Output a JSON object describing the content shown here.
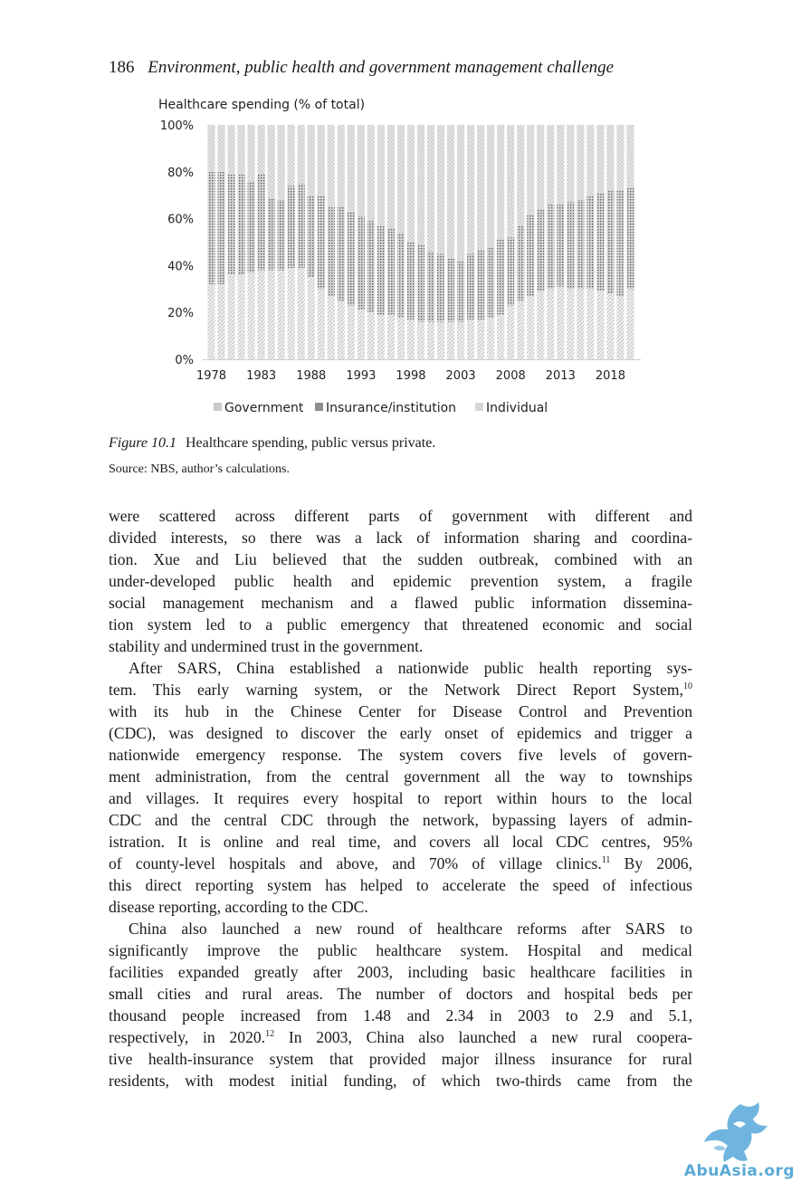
{
  "header": {
    "page_number": "186",
    "running_title": "Environment, public health and government management challenge"
  },
  "chart_data": {
    "type": "bar",
    "stacked": true,
    "title": "Healthcare spending (% of total)",
    "ylim": [
      0,
      100
    ],
    "yticks": [
      "0%",
      "20%",
      "40%",
      "60%",
      "80%",
      "100%"
    ],
    "xtick_labels": [
      "1978",
      "1983",
      "1988",
      "1993",
      "1998",
      "2003",
      "2008",
      "2013",
      "2018"
    ],
    "categories": [
      1978,
      1979,
      1980,
      1981,
      1982,
      1983,
      1984,
      1985,
      1986,
      1987,
      1988,
      1989,
      1990,
      1991,
      1992,
      1993,
      1994,
      1995,
      1996,
      1997,
      1998,
      1999,
      2000,
      2001,
      2002,
      2003,
      2004,
      2005,
      2006,
      2007,
      2008,
      2009,
      2010,
      2011,
      2012,
      2013,
      2014,
      2015,
      2016,
      2017,
      2018,
      2019,
      2020
    ],
    "series": [
      {
        "name": "Government",
        "values": [
          32,
          32,
          36,
          36,
          37,
          38,
          38,
          38,
          39,
          39,
          35,
          30,
          27,
          25,
          23,
          21,
          20,
          19,
          19,
          18,
          17,
          16,
          16,
          16,
          16,
          16,
          17,
          17,
          18,
          19,
          23,
          25,
          27,
          29,
          30,
          31,
          30,
          30,
          30,
          29,
          28,
          27,
          30
        ]
      },
      {
        "name": "Insurance/institution",
        "values": [
          48,
          48,
          43,
          43,
          39,
          41,
          31,
          30,
          35,
          36,
          35,
          40,
          38,
          40,
          40,
          40,
          39,
          38,
          37,
          36,
          33,
          33,
          30,
          29,
          27,
          26,
          28,
          30,
          30,
          32,
          29,
          32,
          35,
          35,
          36,
          35,
          37,
          38,
          40,
          42,
          44,
          45,
          43
        ]
      },
      {
        "name": "Individual",
        "values": [
          20,
          20,
          21,
          21,
          24,
          21,
          31,
          32,
          26,
          25,
          30,
          30,
          35,
          35,
          37,
          39,
          41,
          43,
          44,
          46,
          50,
          51,
          54,
          55,
          57,
          58,
          55,
          53,
          52,
          49,
          48,
          43,
          38,
          36,
          34,
          34,
          33,
          32,
          30,
          29,
          28,
          28,
          27
        ]
      }
    ],
    "legend_position": "bottom",
    "grid": false
  },
  "caption": {
    "label": "Figure 10.1",
    "text": "Healthcare spending, public versus private."
  },
  "source": "Source: NBS, author’s calculations.",
  "paragraphs": [
    {
      "indent": false,
      "lines": [
        "were scattered across different parts of government with different and",
        "divided interests, so there was a lack of information sharing and coordina-",
        "tion. Xue and Liu believed that the sudden outbreak, combined with an",
        "under-developed public health and epidemic prevention system, a fragile",
        "social management mechanism and a flawed public information dissemina-",
        "tion system led to a public emergency that threatened economic and social",
        "stability and undermined trust in the government."
      ]
    },
    {
      "indent": true,
      "lines": [
        "After SARS, China established a nationwide public health reporting sys-",
        "tem. This early warning system, or the Network Direct Report System,",
        "with its hub in the Chinese Center for Disease Control and Prevention",
        "(CDC), was designed to discover the early onset of epidemics and trigger a",
        "nationwide emergency response. The system covers five levels of govern-",
        "ment administration, from the central government all the way to townships",
        "and villages. It requires every hospital to report within hours to the local",
        "CDC and the central CDC through the network, bypassing layers of admin-",
        "istration. It is online and real time, and covers all local CDC centres, 95%",
        "of county-level hospitals and above, and 70% of village clinics.",
        "this direct reporting system has helped to accelerate the speed of infectious",
        "disease reporting, according to the CDC."
      ]
    },
    {
      "indent": true,
      "lines": [
        "China also launched a new round of healthcare reforms after SARS to",
        "significantly improve the public healthcare system. Hospital and medical",
        "facilities expanded greatly after 2003, including basic healthcare facilities in",
        "small cities and rural areas. The number of doctors and hospital beds per",
        "thousand people increased from 1.48 and 2.34 in 2003 to 2.9 and 5.1,",
        "respectively, in 2020.",
        "tive health-insurance system that provided major illness insurance for rural",
        "residents, with modest initial funding, of which two-thirds came from the"
      ]
    }
  ],
  "footnotes": {
    "fn10": "10",
    "fn11": "11",
    "fn11_after": " By 2006,",
    "fn12": "12",
    "fn12_after": " In 2003, China also launched a new rural coopera-"
  },
  "watermark": {
    "text": "AbuAsia.org"
  }
}
